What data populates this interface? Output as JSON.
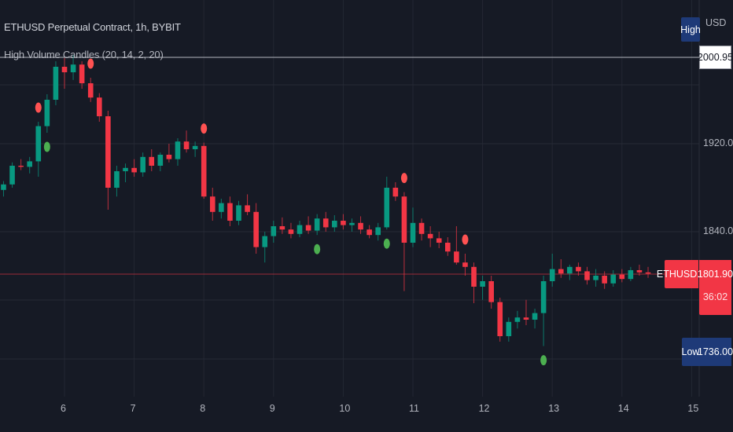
{
  "header": {
    "symbol_title": "ETHUSD Perpetual Contract, 1h, BYBIT",
    "indicator_title": "High Volume Candles (20, 14, 2, 20)"
  },
  "price_axis": {
    "currency": "USD",
    "ticks": [
      "1920.00",
      "1840.00"
    ],
    "high_label": "High",
    "high_value": "2000.95",
    "low_label": "Low",
    "low_value": "1736.00",
    "symbol_tag": "ETHUSD.P",
    "last_price": "1801.90",
    "countdown": "36:02"
  },
  "time_axis": {
    "ticks": [
      "6",
      "7",
      "8",
      "9",
      "10",
      "11",
      "12",
      "13",
      "14",
      "15"
    ]
  },
  "colors": {
    "background": "#161a25",
    "up": "#089981",
    "down": "#f23645",
    "buy_signal": "#4caf50",
    "sell_signal": "#ff5252",
    "tag_blue": "#1e3a78"
  },
  "chart_data": {
    "type": "candlestick",
    "interval_shown": "1h",
    "y_ticks": [
      1920,
      1840
    ],
    "x_ticks": [
      6,
      7,
      8,
      9,
      10,
      11,
      12,
      13,
      14,
      15
    ],
    "high": 2000.95,
    "low": 1736.0,
    "last": 1801.9,
    "candles": [
      [
        "5 03:00",
        1878,
        1886,
        1872,
        1883
      ],
      [
        "5 06:00",
        1883,
        1903,
        1880,
        1900
      ],
      [
        "5 09:00",
        1900,
        1906,
        1896,
        1899
      ],
      [
        "5 12:00",
        1899,
        1908,
        1893,
        1904
      ],
      [
        "5 15:00",
        1904,
        1940,
        1890,
        1936
      ],
      [
        "5 18:00",
        1936,
        1965,
        1930,
        1960
      ],
      [
        "5 21:00",
        1960,
        1995,
        1955,
        1990
      ],
      [
        "6 00:00",
        1990,
        1998,
        1970,
        1985
      ],
      [
        "6 03:00",
        1985,
        2000.95,
        1978,
        1992
      ],
      [
        "6 06:00",
        1992,
        1995,
        1970,
        1975
      ],
      [
        "6 09:00",
        1975,
        1980,
        1958,
        1962
      ],
      [
        "6 12:00",
        1962,
        1966,
        1940,
        1945
      ],
      [
        "6 15:00",
        1945,
        1950,
        1860,
        1880
      ],
      [
        "6 18:00",
        1880,
        1900,
        1872,
        1895
      ],
      [
        "6 21:00",
        1895,
        1902,
        1885,
        1898
      ],
      [
        "7 00:00",
        1898,
        1906,
        1890,
        1894
      ],
      [
        "7 03:00",
        1894,
        1912,
        1890,
        1908
      ],
      [
        "7 06:00",
        1908,
        1915,
        1895,
        1900
      ],
      [
        "7 09:00",
        1900,
        1912,
        1895,
        1910
      ],
      [
        "7 12:00",
        1910,
        1920,
        1903,
        1906
      ],
      [
        "7 15:00",
        1906,
        1925,
        1900,
        1922
      ],
      [
        "7 18:00",
        1922,
        1932,
        1912,
        1915
      ],
      [
        "7 21:00",
        1915,
        1922,
        1908,
        1918
      ],
      [
        "8 00:00",
        1918,
        1921,
        1870,
        1872
      ],
      [
        "8 03:00",
        1872,
        1880,
        1850,
        1858
      ],
      [
        "8 06:00",
        1858,
        1870,
        1852,
        1866
      ],
      [
        "8 09:00",
        1866,
        1872,
        1845,
        1850
      ],
      [
        "8 12:00",
        1850,
        1868,
        1846,
        1864
      ],
      [
        "8 15:00",
        1864,
        1874,
        1855,
        1858
      ],
      [
        "8 18:00",
        1858,
        1866,
        1820,
        1826
      ],
      [
        "8 21:00",
        1826,
        1840,
        1812,
        1836
      ],
      [
        "9 00:00",
        1836,
        1850,
        1830,
        1845
      ],
      [
        "9 03:00",
        1845,
        1853,
        1838,
        1842
      ],
      [
        "9 06:00",
        1842,
        1848,
        1834,
        1838
      ],
      [
        "9 09:00",
        1838,
        1850,
        1835,
        1846
      ],
      [
        "9 12:00",
        1846,
        1854,
        1838,
        1841
      ],
      [
        "9 15:00",
        1841,
        1856,
        1837,
        1852
      ],
      [
        "9 18:00",
        1852,
        1858,
        1840,
        1844
      ],
      [
        "9 21:00",
        1844,
        1855,
        1840,
        1850
      ],
      [
        "10 00:00",
        1850,
        1856,
        1842,
        1846
      ],
      [
        "10 03:00",
        1846,
        1852,
        1840,
        1848
      ],
      [
        "10 06:00",
        1848,
        1854,
        1838,
        1842
      ],
      [
        "10 09:00",
        1842,
        1846,
        1834,
        1837
      ],
      [
        "10 12:00",
        1837,
        1848,
        1832,
        1844
      ],
      [
        "10 15:00",
        1844,
        1890,
        1842,
        1880
      ],
      [
        "10 18:00",
        1880,
        1885,
        1868,
        1872
      ],
      [
        "10 21:00",
        1872,
        1876,
        1786,
        1830
      ],
      [
        "11 00:00",
        1830,
        1862,
        1826,
        1848
      ],
      [
        "11 03:00",
        1848,
        1852,
        1832,
        1838
      ],
      [
        "11 06:00",
        1838,
        1845,
        1826,
        1834
      ],
      [
        "11 09:00",
        1834,
        1840,
        1825,
        1830
      ],
      [
        "11 12:00",
        1830,
        1835,
        1818,
        1822
      ],
      [
        "11 15:00",
        1822,
        1845,
        1810,
        1812
      ],
      [
        "11 18:00",
        1812,
        1820,
        1800,
        1808
      ],
      [
        "11 21:00",
        1808,
        1812,
        1775,
        1790
      ],
      [
        "12 00:00",
        1790,
        1800,
        1778,
        1795
      ],
      [
        "12 03:00",
        1795,
        1800,
        1770,
        1776
      ],
      [
        "12 06:00",
        1776,
        1780,
        1740,
        1745
      ],
      [
        "12 09:00",
        1745,
        1762,
        1740,
        1758
      ],
      [
        "12 12:00",
        1758,
        1768,
        1752,
        1762
      ],
      [
        "12 15:00",
        1762,
        1778,
        1755,
        1760
      ],
      [
        "12 18:00",
        1760,
        1770,
        1752,
        1766
      ],
      [
        "12 21:00",
        1766,
        1800,
        1736,
        1795
      ],
      [
        "13 00:00",
        1795,
        1820,
        1790,
        1806
      ],
      [
        "13 03:00",
        1806,
        1815,
        1798,
        1802
      ],
      [
        "13 06:00",
        1802,
        1810,
        1796,
        1808
      ],
      [
        "13 09:00",
        1808,
        1812,
        1800,
        1804
      ],
      [
        "13 12:00",
        1804,
        1808,
        1792,
        1796
      ],
      [
        "13 15:00",
        1796,
        1806,
        1790,
        1800
      ],
      [
        "13 18:00",
        1800,
        1804,
        1788,
        1793
      ],
      [
        "13 21:00",
        1793,
        1805,
        1790,
        1801
      ],
      [
        "14 00:00",
        1801,
        1806,
        1794,
        1797
      ],
      [
        "14 03:00",
        1797,
        1808,
        1795,
        1805
      ],
      [
        "14 06:00",
        1805,
        1810,
        1800,
        1803
      ],
      [
        "14 09:00",
        1803,
        1808,
        1798,
        1801.9
      ]
    ],
    "signals": [
      {
        "t": "5 15:00",
        "type": "sell"
      },
      {
        "t": "5 18:00",
        "type": "buy"
      },
      {
        "t": "6 09:00",
        "type": "sell"
      },
      {
        "t": "8 00:00",
        "type": "sell"
      },
      {
        "t": "9 15:00",
        "type": "buy"
      },
      {
        "t": "10 15:00",
        "type": "buy"
      },
      {
        "t": "10 21:00",
        "type": "sell"
      },
      {
        "t": "11 18:00",
        "type": "sell"
      },
      {
        "t": "12 21:00",
        "type": "buy"
      }
    ]
  }
}
